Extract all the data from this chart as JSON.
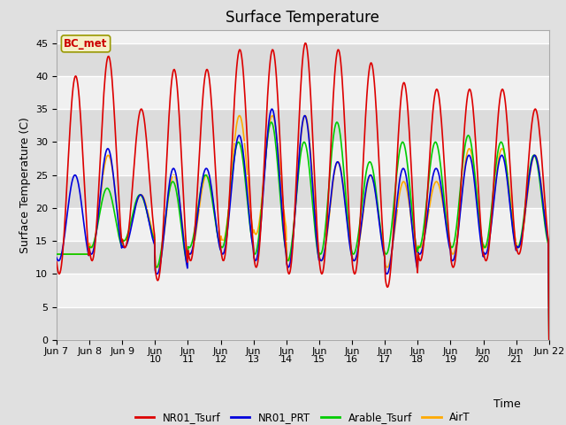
{
  "title": "Surface Temperature",
  "ylabel": "Surface Temperature (C)",
  "xlabel": "Time",
  "annotation": "BC_met",
  "annotation_color": "#cc0000",
  "annotation_bg": "#f5f0c8",
  "annotation_border": "#999900",
  "ylim": [
    0,
    47
  ],
  "yticks": [
    0,
    5,
    10,
    15,
    20,
    25,
    30,
    35,
    40,
    45
  ],
  "xtick_labels": [
    "Jun 7",
    "Jun 8",
    "Jun 9",
    "Jun\n10",
    "Jun\n11",
    "Jun\n12",
    "Jun\n13",
    "Jun\n14",
    "Jun\n15",
    "Jun\n16",
    "Jun\n17",
    "Jun\n18",
    "Jun\n19",
    "Jun\n20",
    "Jun\n21",
    "Jun 22\n"
  ],
  "series_NR01_Tsurf_color": "#dd0000",
  "series_NR01_PRT_color": "#0000dd",
  "series_Arable_Tsurf_color": "#00cc00",
  "series_AirT_color": "#ffaa00",
  "lw": 1.2,
  "bg_color": "#e0e0e0",
  "plot_bg_light": "#f0f0f0",
  "plot_bg_dark": "#dcdcdc",
  "grid_color": "#ffffff",
  "title_fontsize": 12,
  "label_fontsize": 9,
  "tick_fontsize": 8,
  "nr01_tsurf_peaks": [
    40,
    43,
    35,
    41,
    41,
    44,
    44,
    45,
    44,
    42,
    39,
    38,
    38,
    38,
    35
  ],
  "nr01_tsurf_troughs": [
    10,
    12,
    14,
    9,
    12,
    12,
    11,
    10,
    10,
    10,
    8,
    12,
    11,
    12,
    13
  ],
  "nr01_prt_peaks": [
    25,
    29,
    22,
    26,
    26,
    31,
    35,
    34,
    27,
    25,
    26,
    26,
    28,
    28,
    28
  ],
  "nr01_prt_troughs": [
    12,
    13,
    14,
    10,
    13,
    13,
    12,
    11,
    12,
    12,
    10,
    13,
    12,
    13,
    14
  ],
  "arable_peaks": [
    13,
    23,
    22,
    24,
    25,
    30,
    33,
    30,
    33,
    27,
    30,
    30,
    31,
    30,
    28
  ],
  "arable_troughs": [
    13,
    14,
    15,
    11,
    14,
    14,
    13,
    12,
    13,
    13,
    13,
    14,
    14,
    14,
    14
  ],
  "airt_peaks": [
    13,
    28,
    22,
    25,
    25,
    34,
    34,
    34,
    27,
    25,
    24,
    24,
    29,
    29,
    28
  ],
  "airt_troughs": [
    13,
    14,
    15,
    11,
    13,
    15,
    16,
    12,
    12,
    12,
    11,
    14,
    13,
    14,
    14
  ]
}
